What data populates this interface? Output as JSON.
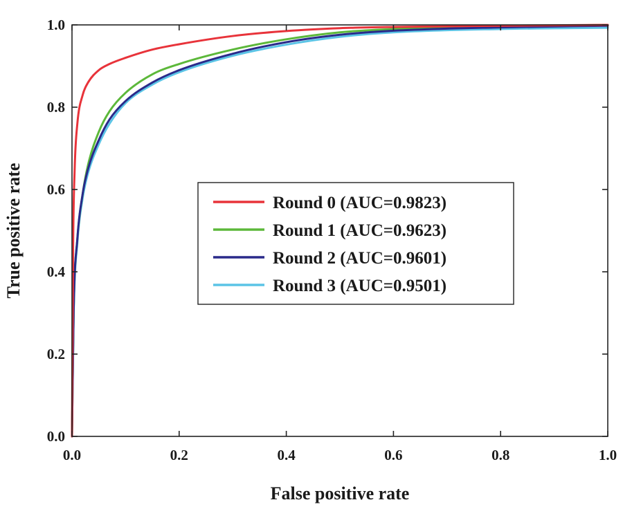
{
  "chart_data": {
    "type": "line",
    "title": "",
    "xlabel": "False positive rate",
    "ylabel": "True positive rate",
    "xlim": [
      0.0,
      1.0
    ],
    "ylim": [
      0.0,
      1.0
    ],
    "xticks": [
      0.0,
      0.2,
      0.4,
      0.6,
      0.8,
      1.0
    ],
    "yticks": [
      0.0,
      0.2,
      0.4,
      0.6,
      0.8,
      1.0
    ],
    "xtick_labels": [
      "0.0",
      "0.2",
      "0.4",
      "0.6",
      "0.8",
      "1.0"
    ],
    "ytick_labels": [
      "0.0",
      "0.2",
      "0.4",
      "0.6",
      "0.8",
      "1.0"
    ],
    "grid": false,
    "legend_position": "center-right",
    "series": [
      {
        "name": "Round 0 (AUC=0.9823)",
        "color": "#e8333a",
        "x": [
          0,
          0.002,
          0.005,
          0.01,
          0.02,
          0.03,
          0.05,
          0.07,
          0.1,
          0.15,
          0.2,
          0.3,
          0.4,
          0.5,
          0.6,
          0.8,
          1.0
        ],
        "y": [
          0,
          0.45,
          0.65,
          0.76,
          0.83,
          0.86,
          0.89,
          0.905,
          0.92,
          0.94,
          0.953,
          0.973,
          0.985,
          0.992,
          0.995,
          0.998,
          1.0
        ]
      },
      {
        "name": "Round 1 (AUC=0.9623)",
        "color": "#5cb83a",
        "x": [
          0,
          0.003,
          0.01,
          0.02,
          0.03,
          0.05,
          0.07,
          0.1,
          0.15,
          0.2,
          0.3,
          0.4,
          0.5,
          0.6,
          0.8,
          1.0
        ],
        "y": [
          0,
          0.3,
          0.48,
          0.59,
          0.66,
          0.74,
          0.79,
          0.835,
          0.88,
          0.905,
          0.94,
          0.965,
          0.982,
          0.99,
          0.996,
          1.0
        ]
      },
      {
        "name": "Round 2 (AUC=0.9601)",
        "color": "#2a2a8a",
        "x": [
          0,
          0.003,
          0.01,
          0.02,
          0.03,
          0.05,
          0.07,
          0.1,
          0.15,
          0.2,
          0.3,
          0.4,
          0.5,
          0.6,
          0.8,
          1.0
        ],
        "y": [
          0,
          0.3,
          0.48,
          0.59,
          0.65,
          0.72,
          0.77,
          0.815,
          0.86,
          0.89,
          0.93,
          0.958,
          0.976,
          0.986,
          0.994,
          0.998
        ]
      },
      {
        "name": "Round 3 (AUC=0.9501)",
        "color": "#5bc4e6",
        "x": [
          0,
          0.003,
          0.01,
          0.02,
          0.03,
          0.05,
          0.07,
          0.1,
          0.15,
          0.2,
          0.3,
          0.4,
          0.5,
          0.6,
          0.8,
          1.0
        ],
        "y": [
          0,
          0.29,
          0.47,
          0.58,
          0.64,
          0.71,
          0.76,
          0.81,
          0.855,
          0.885,
          0.925,
          0.952,
          0.971,
          0.982,
          0.99,
          0.993
        ]
      }
    ]
  }
}
